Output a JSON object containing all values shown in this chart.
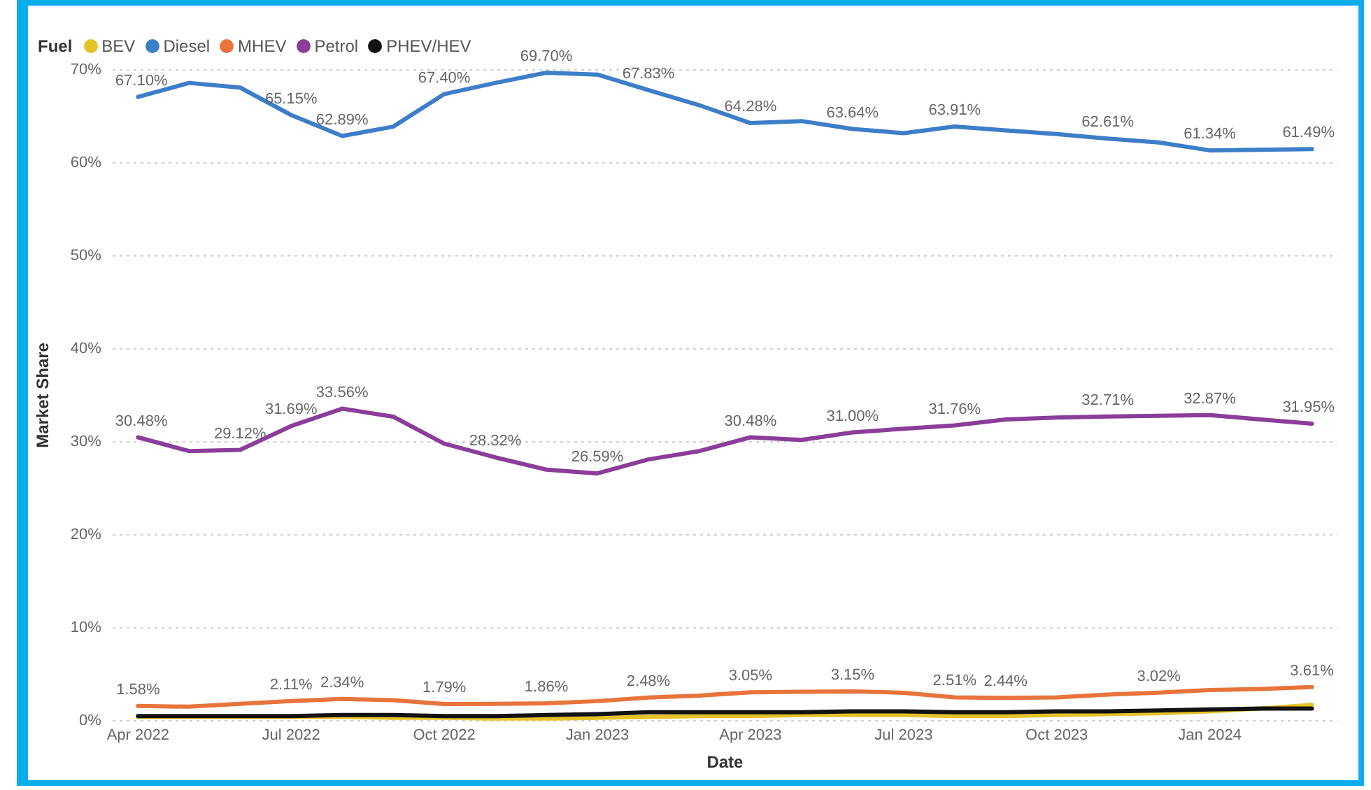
{
  "chart_data": {
    "type": "line",
    "xlabel": "Date",
    "ylabel": "Market Share",
    "legend_title": "Fuel",
    "legend": "top left",
    "grid": "y",
    "marker": "none",
    "line_style": "solid",
    "categories": [
      "Apr 2022",
      null,
      null,
      "Jul 2022",
      null,
      null,
      "Oct 2022",
      null,
      null,
      "Jan 2023",
      null,
      null,
      "Apr 2023",
      null,
      null,
      "Jul 2023",
      null,
      null,
      "Oct 2023",
      null,
      null,
      "Jan 2024",
      null,
      null
    ],
    "ylim": [
      0,
      70
    ],
    "yticks": [
      {
        "value": 0,
        "label": "0%"
      },
      {
        "value": 10,
        "label": "10%"
      },
      {
        "value": 20,
        "label": "20%"
      },
      {
        "value": 30,
        "label": "30%"
      },
      {
        "value": 40,
        "label": "40%"
      },
      {
        "value": 50,
        "label": "50%"
      },
      {
        "value": 60,
        "label": "60%"
      },
      {
        "value": 70,
        "label": "70%"
      }
    ],
    "series": [
      {
        "name": "BEV",
        "color": "#e6c229",
        "values": [
          0.4,
          0.4,
          0.4,
          0.4,
          0.4,
          0.3,
          0.3,
          0.2,
          0.2,
          0.3,
          0.4,
          0.5,
          0.5,
          0.6,
          0.6,
          0.6,
          0.5,
          0.5,
          0.6,
          0.7,
          0.8,
          1.0,
          1.3,
          1.7
        ]
      },
      {
        "name": "Diesel",
        "color": "#3d7ec9",
        "values": [
          67.1,
          68.6,
          68.1,
          65.15,
          62.89,
          63.9,
          67.4,
          68.6,
          69.7,
          69.5,
          67.83,
          66.2,
          64.28,
          64.5,
          63.64,
          63.2,
          63.91,
          63.5,
          63.1,
          62.61,
          62.2,
          61.34,
          61.4,
          61.49
        ],
        "value_labels": [
          "67.10%",
          null,
          null,
          "65.15%",
          "62.89%",
          null,
          "67.40%",
          null,
          "69.70%",
          null,
          "67.83%",
          null,
          "64.28%",
          null,
          "63.64%",
          null,
          "63.91%",
          null,
          null,
          "62.61%",
          null,
          "61.34%",
          null,
          "61.49%"
        ]
      },
      {
        "name": "MHEV",
        "color": "#e8743b",
        "values": [
          1.58,
          1.5,
          1.8,
          2.11,
          2.34,
          2.2,
          1.79,
          1.8,
          1.86,
          2.1,
          2.48,
          2.7,
          3.05,
          3.1,
          3.15,
          3.0,
          2.51,
          2.44,
          2.5,
          2.8,
          3.02,
          3.3,
          3.4,
          3.61
        ],
        "value_labels": [
          "1.58%",
          null,
          null,
          "2.11%",
          "2.34%",
          null,
          "1.79%",
          null,
          "1.86%",
          null,
          "2.48%",
          null,
          "3.05%",
          null,
          "3.15%",
          null,
          "2.51%",
          "2.44%",
          null,
          null,
          "3.02%",
          null,
          null,
          "3.61%"
        ]
      },
      {
        "name": "Petrol",
        "color": "#8b3d9a",
        "values": [
          30.48,
          29.0,
          29.12,
          31.69,
          33.56,
          32.7,
          29.8,
          28.32,
          27.0,
          26.59,
          28.1,
          29.0,
          30.48,
          30.2,
          31.0,
          31.4,
          31.76,
          32.4,
          32.6,
          32.71,
          32.8,
          32.87,
          32.4,
          31.95
        ],
        "value_labels": [
          "30.48%",
          null,
          "29.12%",
          "31.69%",
          "33.56%",
          null,
          null,
          "28.32%",
          null,
          "26.59%",
          null,
          null,
          "30.48%",
          null,
          "31.00%",
          null,
          "31.76%",
          null,
          null,
          "32.71%",
          null,
          "32.87%",
          null,
          "31.95%"
        ]
      },
      {
        "name": "PHEV/HEV",
        "color": "#111111",
        "values": [
          0.5,
          0.5,
          0.5,
          0.5,
          0.6,
          0.6,
          0.5,
          0.5,
          0.6,
          0.7,
          0.9,
          0.9,
          0.9,
          0.9,
          1.0,
          1.0,
          0.9,
          0.9,
          1.0,
          1.0,
          1.1,
          1.2,
          1.3,
          1.3
        ]
      }
    ]
  }
}
